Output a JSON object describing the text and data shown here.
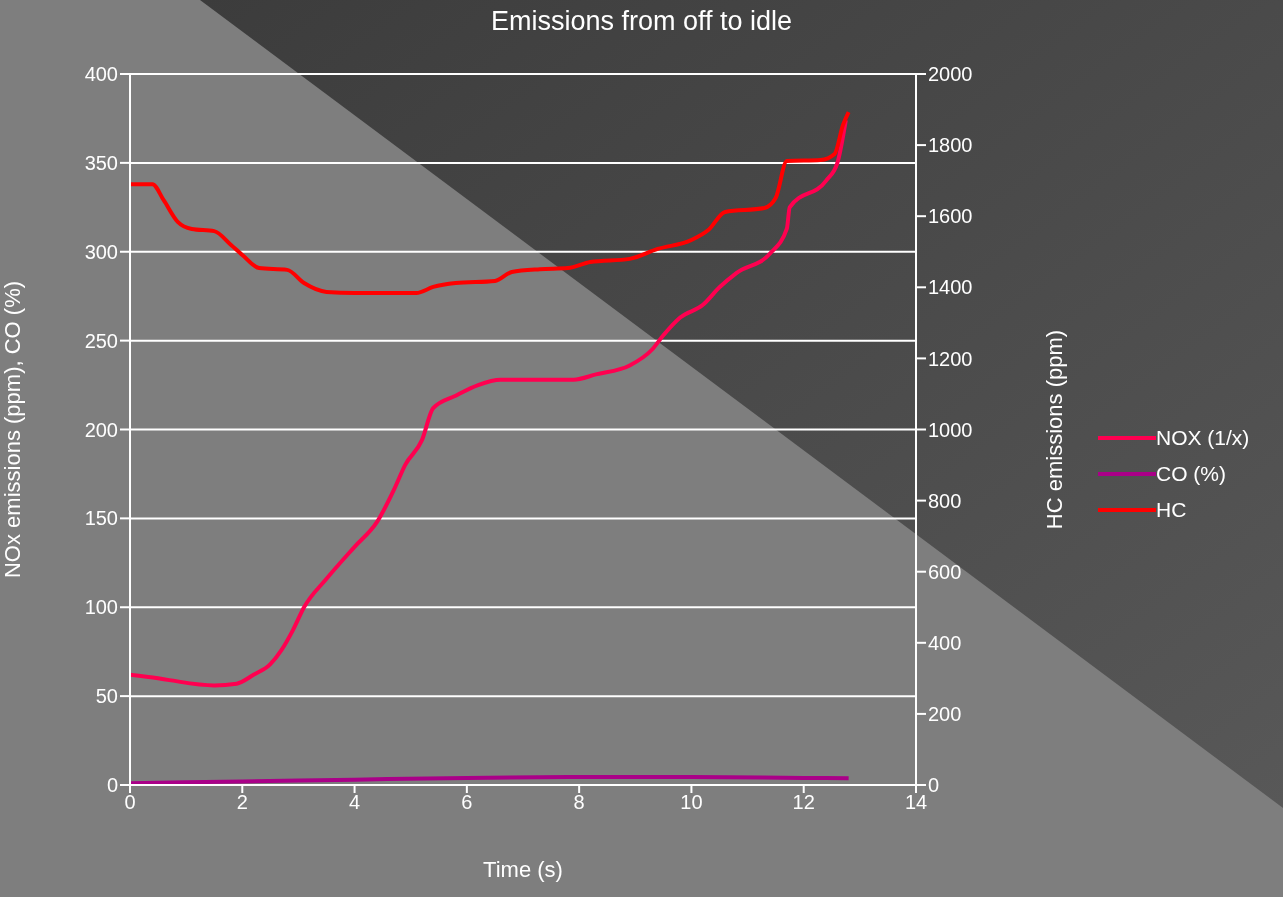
{
  "chart_data": {
    "type": "line",
    "title": "Emissions from off to idle",
    "xlabel": "Time (s)",
    "ylabel": "NOx emissions (ppm), CO (%)",
    "y2label": "HC emissions (ppm)",
    "xlim": [
      0,
      14
    ],
    "xticks": [
      0,
      2,
      4,
      6,
      8,
      10,
      12,
      14
    ],
    "ylim": [
      0,
      400
    ],
    "yticks": [
      0,
      50,
      100,
      150,
      200,
      250,
      300,
      350,
      400
    ],
    "y2lim": [
      0,
      2000
    ],
    "y2ticks": [
      0,
      200,
      400,
      600,
      800,
      1000,
      1200,
      1400,
      1600,
      1800,
      2000
    ],
    "grid": "y",
    "legend": "right",
    "series": [
      {
        "name": "NOX (1/x)",
        "color": "#ff0050",
        "x": [
          0,
          0.5,
          0.7,
          1.5,
          1.9,
          2.2,
          2.5,
          2.7,
          2.9,
          3.1,
          3.5,
          4,
          4.4,
          4.7,
          4.9,
          5.2,
          5.4,
          5.8,
          6.2,
          6.6,
          7.9,
          8.3,
          8.9,
          9.3,
          9.5,
          9.8,
          10.2,
          10.5,
          10.8,
          11.4,
          11.7,
          11.75,
          12.4,
          12.6,
          12.75
        ],
        "values": [
          62,
          60,
          59,
          56,
          57,
          62,
          68,
          76,
          87,
          100,
          116,
          134,
          148,
          166,
          180,
          194,
          212,
          219,
          225,
          228,
          228,
          231,
          236,
          245,
          253,
          263,
          270,
          280,
          288,
          299,
          313,
          325,
          340,
          350,
          374
        ]
      },
      {
        "name": "CO (%)",
        "color": "#aa0088",
        "x": [
          0,
          2,
          4,
          6,
          8,
          10,
          12,
          12.8
        ],
        "values": [
          1,
          2,
          3,
          4,
          4.5,
          4.5,
          4,
          3.8
        ]
      },
      {
        "name": "HC",
        "color": "#ff0000",
        "axis": "y2",
        "x": [
          0,
          0.4,
          0.6,
          0.85,
          1.1,
          1.5,
          1.8,
          2,
          2.3,
          2.8,
          3.1,
          3.5,
          4,
          5.1,
          5.4,
          5.8,
          6.5,
          6.8,
          7.3,
          7.8,
          8.2,
          8.9,
          9.4,
          10,
          10.3,
          10.6,
          11.3,
          11.5,
          11.7,
          12.3,
          12.55,
          12.7,
          12.8
        ],
        "values": [
          1690,
          1690,
          1645,
          1584,
          1564,
          1558,
          1519,
          1491,
          1454,
          1449,
          1412,
          1387,
          1384,
          1384,
          1401,
          1412,
          1418,
          1443,
          1451,
          1454,
          1471,
          1480,
          1508,
          1533,
          1561,
          1612,
          1623,
          1651,
          1755,
          1758,
          1775,
          1857,
          1893
        ]
      }
    ]
  }
}
